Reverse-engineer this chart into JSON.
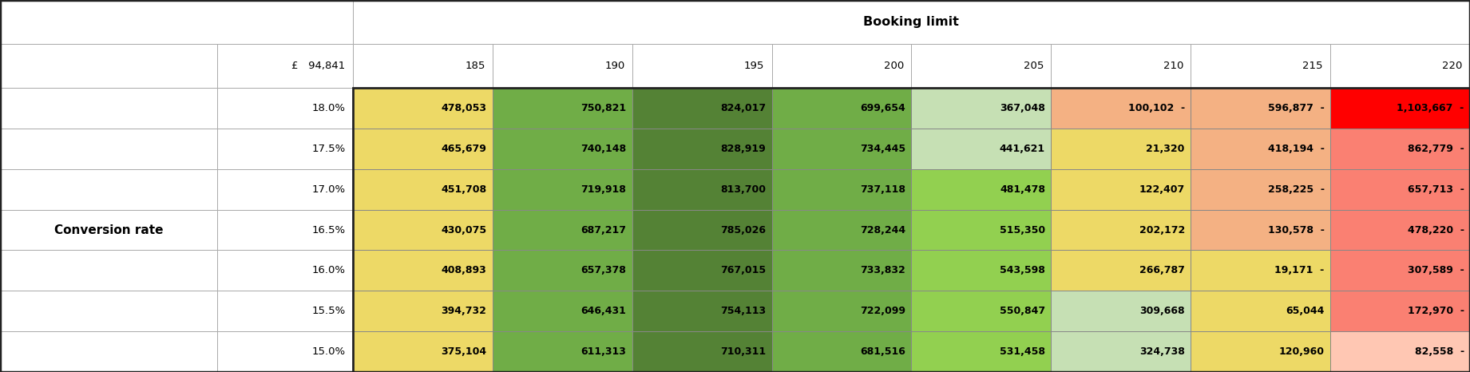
{
  "title": "Booking limit",
  "row_header_label": "Conversion rate",
  "col1_label": "£   94,841",
  "booking_limits": [
    "185",
    "190",
    "195",
    "200",
    "205",
    "210",
    "215",
    "220"
  ],
  "conversion_rates": [
    "18.0%",
    "17.5%",
    "17.0%",
    "16.5%",
    "16.0%",
    "15.5%",
    "15.0%"
  ],
  "display_data": [
    [
      "478,053",
      "750,821",
      "824,017",
      "699,654",
      "367,048",
      "100,102",
      "596,877",
      "1,103,667"
    ],
    [
      "465,679",
      "740,148",
      "828,919",
      "734,445",
      "441,621",
      "21,320",
      "418,194",
      "862,779"
    ],
    [
      "451,708",
      "719,918",
      "813,700",
      "737,118",
      "481,478",
      "122,407",
      "258,225",
      "657,713"
    ],
    [
      "430,075",
      "687,217",
      "785,026",
      "728,244",
      "515,350",
      "202,172",
      "130,578",
      "478,220"
    ],
    [
      "408,893",
      "657,378",
      "767,015",
      "733,832",
      "543,598",
      "266,787",
      "19,171",
      "307,589"
    ],
    [
      "394,732",
      "646,431",
      "754,113",
      "722,099",
      "550,847",
      "309,668",
      "65,044",
      "172,970"
    ],
    [
      "375,104",
      "611,313",
      "710,311",
      "681,516",
      "531,458",
      "324,738",
      "120,960",
      "82,558"
    ]
  ],
  "neg_indicator": [
    [
      false,
      false,
      false,
      false,
      false,
      true,
      true,
      true
    ],
    [
      false,
      false,
      false,
      false,
      false,
      false,
      true,
      true
    ],
    [
      false,
      false,
      false,
      false,
      false,
      false,
      true,
      true
    ],
    [
      false,
      false,
      false,
      false,
      false,
      false,
      true,
      true
    ],
    [
      false,
      false,
      false,
      false,
      false,
      false,
      true,
      true
    ],
    [
      false,
      false,
      false,
      false,
      false,
      false,
      false,
      true
    ],
    [
      false,
      false,
      false,
      false,
      false,
      false,
      false,
      true
    ]
  ],
  "cell_colors": [
    [
      "#edd966",
      "#70ad47",
      "#548235",
      "#70ad47",
      "#c6e0b4",
      "#f4b183",
      "#f4b183",
      "#ff0000"
    ],
    [
      "#edd966",
      "#70ad47",
      "#548235",
      "#70ad47",
      "#c6e0b4",
      "#edd966",
      "#f4b183",
      "#fa8072"
    ],
    [
      "#edd966",
      "#70ad47",
      "#548235",
      "#70ad47",
      "#92d050",
      "#edd966",
      "#f4b183",
      "#fa8072"
    ],
    [
      "#edd966",
      "#70ad47",
      "#548235",
      "#70ad47",
      "#92d050",
      "#edd966",
      "#f4b183",
      "#fa8072"
    ],
    [
      "#edd966",
      "#70ad47",
      "#548235",
      "#70ad47",
      "#92d050",
      "#edd966",
      "#edd966",
      "#fa8072"
    ],
    [
      "#edd966",
      "#70ad47",
      "#548235",
      "#70ad47",
      "#92d050",
      "#c6e0b4",
      "#edd966",
      "#fa8072"
    ],
    [
      "#edd966",
      "#70ad47",
      "#548235",
      "#70ad47",
      "#92d050",
      "#c6e0b4",
      "#edd966",
      "#ffc7b3"
    ]
  ],
  "header_border_color": "#aaaaaa",
  "data_border_color": "#888888",
  "outer_border_color": "#333333",
  "figsize": [
    18.41,
    4.66
  ],
  "dpi": 100
}
